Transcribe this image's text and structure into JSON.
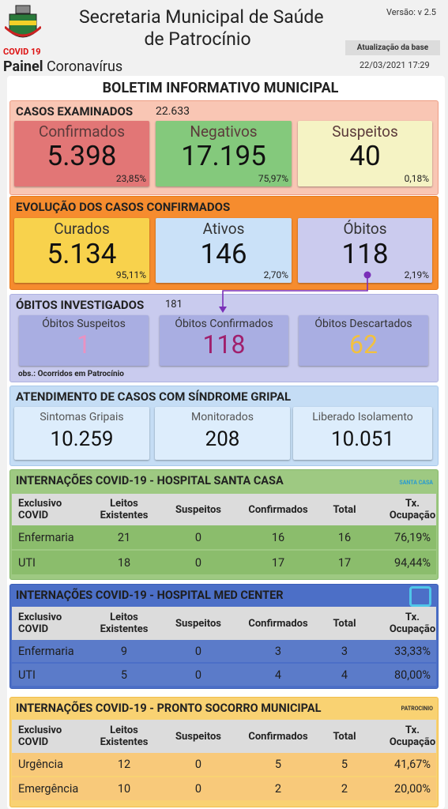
{
  "header": {
    "logo_label": "COVID 19",
    "title_line1": "Secretaria Municipal de Saúde",
    "title_line2": "de Patrocínio",
    "version": "Versão: v 2.5",
    "update_label": "Atualização da base",
    "update_date": "22/03/2021 17:29",
    "panel_bold": "Painel",
    "panel_rest": "Coronavírus"
  },
  "bulletin_title": "BOLETIM INFORMATIVO MUNICIPAL",
  "cases_examined": {
    "title": "CASOS EXAMINADOS",
    "total": "22.633",
    "cards": [
      {
        "label": "Confirmados",
        "value": "5.398",
        "percent": "23,85%"
      },
      {
        "label": "Negativos",
        "value": "17.195",
        "percent": "75,97%"
      },
      {
        "label": "Suspeitos",
        "value": "40",
        "percent": "0,18%"
      }
    ]
  },
  "evolution": {
    "title": "EVOLUÇÃO DOS CASOS CONFIRMADOS",
    "cards": [
      {
        "label": "Curados",
        "value": "5.134",
        "percent": "95,11%"
      },
      {
        "label": "Ativos",
        "value": "146",
        "percent": "2,70%"
      },
      {
        "label": "Óbitos",
        "value": "118",
        "percent": "2,19%"
      }
    ]
  },
  "deaths_investigated": {
    "title": "ÓBITOS INVESTIGADOS",
    "total": "181",
    "cards": [
      {
        "label": "Óbitos Suspeitos",
        "value": "1"
      },
      {
        "label": "Óbitos Confirmados",
        "value": "118"
      },
      {
        "label": "Óbitos Descartados",
        "value": "62"
      }
    ],
    "note": "obs.: Ocorridos em Patrocínio"
  },
  "flu_syndrome": {
    "title": "ATENDIMENTO DE CASOS COM SÍNDROME GRIPAL",
    "cards": [
      {
        "label": "Sintomas Gripais",
        "value": "10.259"
      },
      {
        "label": "Monitorados",
        "value": "208"
      },
      {
        "label": "Liberado Isolamento",
        "value": "10.051"
      }
    ]
  },
  "hospitals": [
    {
      "title": "INTERNAÇÕES COVID-19 - HOSPITAL SANTA CASA",
      "logo_text": "SANTA CASA",
      "columns": [
        [
          "Exclusivo",
          "COVID"
        ],
        [
          "Leitos",
          "Existentes"
        ],
        [
          "Suspeitos"
        ],
        [
          "Confirmados"
        ],
        [
          "Total"
        ],
        [
          "Tx.",
          "Ocupação"
        ]
      ],
      "rows": [
        [
          "Enfermaria",
          "21",
          "0",
          "16",
          "16",
          "76,19%"
        ],
        [
          "UTI",
          "18",
          "0",
          "17",
          "17",
          "94,44%"
        ]
      ]
    },
    {
      "title": "INTERNAÇÕES COVID-19 - HOSPITAL MED CENTER",
      "columns": [
        [
          "Exclusivo",
          "COVID"
        ],
        [
          "Leitos",
          "Existentes"
        ],
        [
          "Suspeitos"
        ],
        [
          "Confirmados"
        ],
        [
          "Total"
        ],
        [
          "Tx.",
          "Ocupação"
        ]
      ],
      "rows": [
        [
          "Enfermaria",
          "9",
          "0",
          "3",
          "3",
          "33,33%"
        ],
        [
          "UTI",
          "5",
          "0",
          "4",
          "4",
          "80,00%"
        ]
      ]
    },
    {
      "title": "INTERNAÇÕES COVID-19 - PRONTO SOCORRO MUNICIPAL",
      "logo_text": "PATROCINIO",
      "columns": [
        [
          "Exclusivo",
          "COVID"
        ],
        [
          "Leitos",
          "Existentes"
        ],
        [
          "Suspeitos"
        ],
        [
          "Confirmados"
        ],
        [
          "Total"
        ],
        [
          "Tx.",
          "Ocupação"
        ]
      ],
      "rows": [
        [
          "Urgência",
          "12",
          "0",
          "5",
          "5",
          "41,67%"
        ],
        [
          "Emergência",
          "10",
          "0",
          "2",
          "2",
          "20,00%"
        ]
      ]
    }
  ]
}
